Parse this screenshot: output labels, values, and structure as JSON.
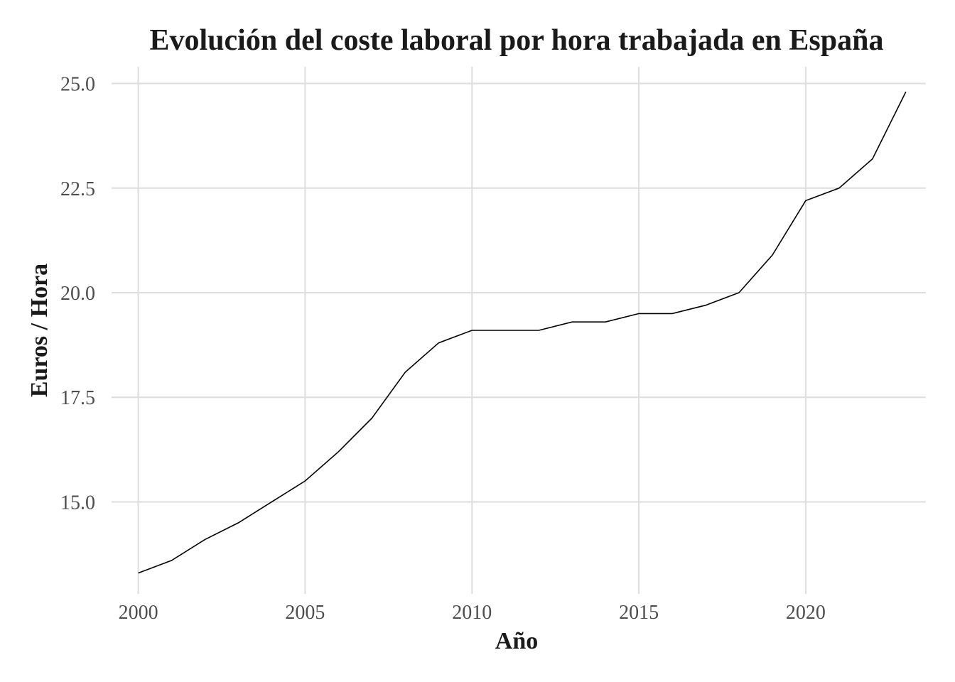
{
  "chart_data": {
    "type": "line",
    "title": "Evolución del coste laboral por hora trabajada en España",
    "xlabel": "Año",
    "ylabel": "Euros / Hora",
    "xlim": [
      1999.2,
      2023.6
    ],
    "ylim": [
      12.8,
      25.4
    ],
    "x_ticks": [
      2000,
      2005,
      2010,
      2015,
      2020
    ],
    "x_tick_labels": [
      "2000",
      "2005",
      "2010",
      "2015",
      "2020"
    ],
    "y_ticks": [
      15.0,
      17.5,
      20.0,
      22.5,
      25.0
    ],
    "y_tick_labels": [
      "15.0",
      "17.5",
      "20.0",
      "22.5",
      "25.0"
    ],
    "grid": true,
    "line_color": "#000000",
    "grid_color": "#dedede",
    "series": [
      {
        "x": [
          2000,
          2001,
          2002,
          2003,
          2004,
          2005,
          2006,
          2007,
          2008,
          2009,
          2010,
          2011,
          2012,
          2013,
          2014,
          2015,
          2016,
          2017,
          2018,
          2019,
          2020,
          2021,
          2022,
          2023
        ],
        "values": [
          13.3,
          13.6,
          14.1,
          14.5,
          15.0,
          15.5,
          16.2,
          17.0,
          18.1,
          18.8,
          19.1,
          19.1,
          19.1,
          19.3,
          19.3,
          19.5,
          19.5,
          19.7,
          20.0,
          20.9,
          22.2,
          22.5,
          23.2,
          24.8
        ]
      }
    ]
  }
}
